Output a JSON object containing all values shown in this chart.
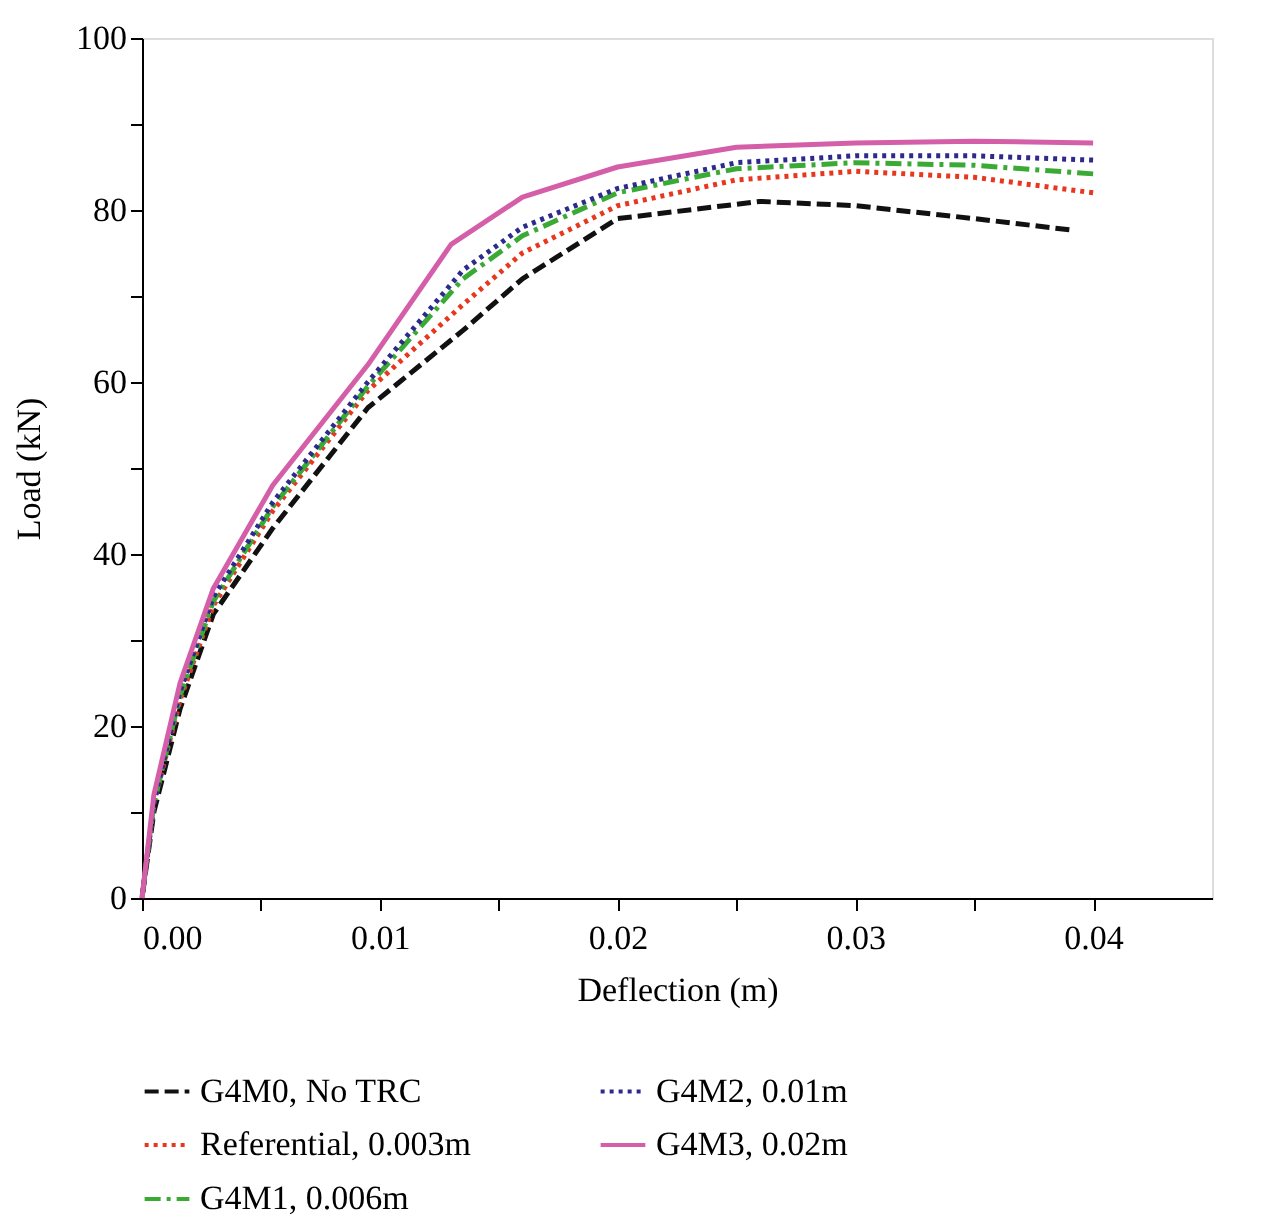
{
  "chart_data": {
    "type": "line",
    "xlabel": "Deflection (m)",
    "ylabel": "Load (kN)",
    "xlim": [
      0,
      0.045
    ],
    "ylim": [
      0,
      100
    ],
    "xticks": [
      {
        "value": 0,
        "label": "0.00"
      },
      {
        "value": 0.005,
        "label": null
      },
      {
        "value": 0.01,
        "label": "0.01"
      },
      {
        "value": 0.015,
        "label": null
      },
      {
        "value": 0.02,
        "label": "0.02"
      },
      {
        "value": 0.025,
        "label": null
      },
      {
        "value": 0.03,
        "label": "0.03"
      },
      {
        "value": 0.035,
        "label": null
      },
      {
        "value": 0.04,
        "label": "0.04"
      }
    ],
    "yticks": [
      0,
      {
        "value": 10,
        "label": null
      },
      20,
      {
        "value": 30,
        "label": null
      },
      40,
      {
        "value": 50,
        "label": null
      },
      60,
      {
        "value": 70,
        "label": null
      },
      80,
      {
        "value": 90,
        "label": null
      },
      100
    ],
    "grid": false,
    "legend": "bottom",
    "marker": "none",
    "series": [
      {
        "name": "G4M0, No TRC",
        "color": "#111111",
        "line_style": "dashed",
        "x": [
          0,
          0.0005,
          0.0016,
          0.003,
          0.0055,
          0.0095,
          0.0135,
          0.016,
          0.02,
          0.026,
          0.03,
          0.035,
          0.039
        ],
        "values": [
          0,
          10,
          22,
          33,
          43,
          57,
          66,
          72,
          79,
          81,
          80.5,
          79,
          77.7
        ]
      },
      {
        "name": "Referential, 0.003m",
        "color": "#e8371e",
        "line_style": "dotted",
        "x": [
          0,
          0.0005,
          0.0016,
          0.003,
          0.0055,
          0.0095,
          0.0135,
          0.016,
          0.02,
          0.025,
          0.03,
          0.035,
          0.04
        ],
        "values": [
          0,
          11,
          23,
          34,
          45,
          59,
          69,
          75,
          80.5,
          83.5,
          84.5,
          83.8,
          82
        ]
      },
      {
        "name": "G4M1, 0.006m",
        "color": "#3aaa35",
        "line_style": "dashdot",
        "x": [
          0,
          0.0005,
          0.0016,
          0.003,
          0.0055,
          0.0095,
          0.0135,
          0.016,
          0.02,
          0.025,
          0.03,
          0.035,
          0.04
        ],
        "values": [
          0,
          11,
          23.5,
          34.5,
          45.5,
          59.5,
          72,
          77,
          82,
          84.8,
          85.5,
          85.2,
          84.2
        ]
      },
      {
        "name": "G4M2, 0.01m",
        "color": "#2e2a8c",
        "line_style": "dotted",
        "x": [
          0,
          0.0005,
          0.0016,
          0.003,
          0.0055,
          0.0095,
          0.0135,
          0.016,
          0.02,
          0.025,
          0.03,
          0.035,
          0.04
        ],
        "values": [
          0,
          11,
          24,
          35,
          46,
          60,
          73,
          78,
          82.5,
          85.5,
          86.3,
          86.3,
          85.8
        ]
      },
      {
        "name": "G4M3, 0.02m",
        "color": "#d45fa8",
        "line_style": "solid",
        "x": [
          0,
          0.0005,
          0.0016,
          0.003,
          0.0055,
          0.0095,
          0.013,
          0.016,
          0.02,
          0.025,
          0.03,
          0.035,
          0.04
        ],
        "values": [
          0,
          12,
          25,
          36,
          48,
          62,
          76,
          81.5,
          85,
          87.3,
          87.8,
          88,
          87.8
        ]
      }
    ]
  }
}
